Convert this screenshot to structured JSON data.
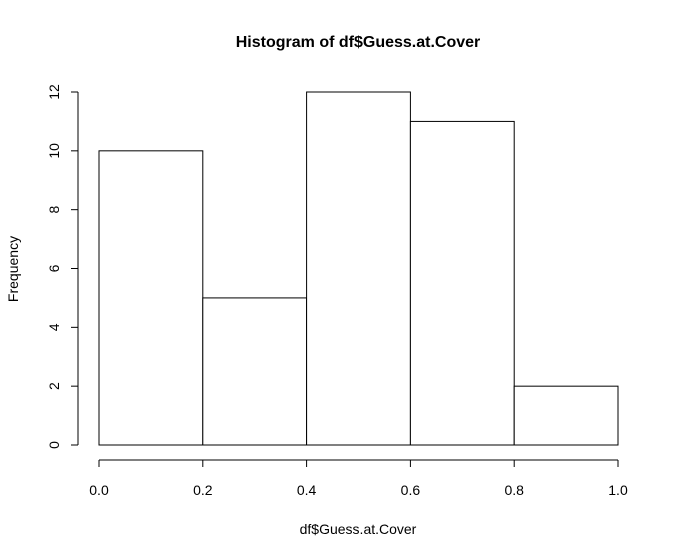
{
  "chart_data": {
    "type": "bar",
    "title": "Histogram of df$Guess.at.Cover",
    "xlabel": "df$Guess.at.Cover",
    "ylabel": "Frequency",
    "bins": [
      {
        "start": 0.0,
        "end": 0.2,
        "value": 10
      },
      {
        "start": 0.2,
        "end": 0.4,
        "value": 5
      },
      {
        "start": 0.4,
        "end": 0.6,
        "value": 12
      },
      {
        "start": 0.6,
        "end": 0.8,
        "value": 11
      },
      {
        "start": 0.8,
        "end": 1.0,
        "value": 2
      }
    ],
    "xlim": [
      0.0,
      1.0
    ],
    "ylim": [
      0,
      12
    ],
    "x_ticks": [
      "0.0",
      "0.2",
      "0.4",
      "0.6",
      "0.8",
      "1.0"
    ],
    "y_ticks": [
      "0",
      "2",
      "4",
      "6",
      "8",
      "10",
      "12"
    ],
    "grid": false,
    "bar_fill": "#ffffff",
    "bar_stroke": "#000000"
  }
}
